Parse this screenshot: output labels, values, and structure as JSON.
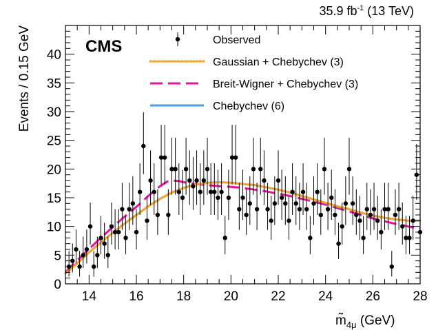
{
  "header": {
    "lumi_value": "35.9 fb",
    "lumi_exponent": "-1",
    "energy": " (13 TeV)"
  },
  "chart_data": {
    "type": "scatter",
    "experiment_label": "CMS",
    "xlabel_main": "m̃",
    "xlabel_subscript": "4μ",
    "xlabel_unit": " (GeV)",
    "ylabel": "Events / 0.15 GeV",
    "xlim": [
      13,
      28
    ],
    "ylim": [
      0,
      45
    ],
    "xticks": [
      14,
      16,
      18,
      20,
      22,
      24,
      26,
      28
    ],
    "yticks": [
      0,
      5,
      10,
      15,
      20,
      25,
      30,
      35,
      40
    ],
    "legend_position": "top-center",
    "legend": [
      {
        "label": "Observed",
        "style": "marker"
      },
      {
        "label": "Gaussian + Chebychev (3)",
        "style": "dotted",
        "color": "#f5a623"
      },
      {
        "label": "Breit-Wigner + Chebychev (3)",
        "style": "dashed",
        "color": "#e8109a"
      },
      {
        "label": "Chebychev (6)",
        "style": "solid",
        "color": "#4a9fe8"
      }
    ],
    "observed": [
      {
        "x": 13.15,
        "y": 3
      },
      {
        "x": 13.3,
        "y": 4
      },
      {
        "x": 13.45,
        "y": 6
      },
      {
        "x": 13.6,
        "y": 3
      },
      {
        "x": 13.75,
        "y": 5
      },
      {
        "x": 13.9,
        "y": 6
      },
      {
        "x": 14.05,
        "y": 10
      },
      {
        "x": 14.2,
        "y": 3
      },
      {
        "x": 14.35,
        "y": 5
      },
      {
        "x": 14.5,
        "y": 8
      },
      {
        "x": 14.65,
        "y": 7
      },
      {
        "x": 14.8,
        "y": 5
      },
      {
        "x": 14.95,
        "y": 10
      },
      {
        "x": 15.1,
        "y": 9
      },
      {
        "x": 15.25,
        "y": 9
      },
      {
        "x": 15.4,
        "y": 13
      },
      {
        "x": 15.55,
        "y": 8
      },
      {
        "x": 15.7,
        "y": 13
      },
      {
        "x": 15.85,
        "y": 14
      },
      {
        "x": 16.0,
        "y": 9
      },
      {
        "x": 16.15,
        "y": 16
      },
      {
        "x": 16.3,
        "y": 24
      },
      {
        "x": 16.45,
        "y": 11
      },
      {
        "x": 16.6,
        "y": 18
      },
      {
        "x": 16.75,
        "y": 16
      },
      {
        "x": 16.9,
        "y": 12
      },
      {
        "x": 17.05,
        "y": 22
      },
      {
        "x": 17.2,
        "y": 22
      },
      {
        "x": 17.35,
        "y": 12
      },
      {
        "x": 17.5,
        "y": 20
      },
      {
        "x": 17.65,
        "y": 20
      },
      {
        "x": 17.8,
        "y": 16
      },
      {
        "x": 17.95,
        "y": 15
      },
      {
        "x": 18.1,
        "y": 20
      },
      {
        "x": 18.25,
        "y": 18
      },
      {
        "x": 18.4,
        "y": 17
      },
      {
        "x": 18.55,
        "y": 18
      },
      {
        "x": 18.7,
        "y": 16
      },
      {
        "x": 18.85,
        "y": 18
      },
      {
        "x": 19.0,
        "y": 20
      },
      {
        "x": 19.15,
        "y": 16
      },
      {
        "x": 19.3,
        "y": 16
      },
      {
        "x": 19.45,
        "y": 15
      },
      {
        "x": 19.6,
        "y": 16
      },
      {
        "x": 19.75,
        "y": 8
      },
      {
        "x": 19.9,
        "y": 15
      },
      {
        "x": 20.05,
        "y": 22
      },
      {
        "x": 20.2,
        "y": 22
      },
      {
        "x": 20.35,
        "y": 13
      },
      {
        "x": 20.5,
        "y": 15
      },
      {
        "x": 20.65,
        "y": 12
      },
      {
        "x": 20.8,
        "y": 14
      },
      {
        "x": 20.95,
        "y": 20
      },
      {
        "x": 21.1,
        "y": 13
      },
      {
        "x": 21.25,
        "y": 20
      },
      {
        "x": 21.4,
        "y": 18
      },
      {
        "x": 21.55,
        "y": 13
      },
      {
        "x": 21.7,
        "y": 11
      },
      {
        "x": 21.85,
        "y": 14
      },
      {
        "x": 22.0,
        "y": 18
      },
      {
        "x": 22.15,
        "y": 15
      },
      {
        "x": 22.3,
        "y": 14
      },
      {
        "x": 22.45,
        "y": 11
      },
      {
        "x": 22.6,
        "y": 16
      },
      {
        "x": 22.75,
        "y": 14
      },
      {
        "x": 22.9,
        "y": 13
      },
      {
        "x": 23.05,
        "y": 16
      },
      {
        "x": 23.2,
        "y": 13
      },
      {
        "x": 23.35,
        "y": 8
      },
      {
        "x": 23.5,
        "y": 14
      },
      {
        "x": 23.65,
        "y": 16
      },
      {
        "x": 23.8,
        "y": 12
      },
      {
        "x": 23.95,
        "y": 20
      },
      {
        "x": 24.1,
        "y": 13
      },
      {
        "x": 24.25,
        "y": 15
      },
      {
        "x": 24.4,
        "y": 12
      },
      {
        "x": 24.55,
        "y": 7
      },
      {
        "x": 24.7,
        "y": 10
      },
      {
        "x": 24.85,
        "y": 14
      },
      {
        "x": 25.0,
        "y": 20
      },
      {
        "x": 25.15,
        "y": 14
      },
      {
        "x": 25.3,
        "y": 12
      },
      {
        "x": 25.45,
        "y": 11
      },
      {
        "x": 25.6,
        "y": 8
      },
      {
        "x": 25.75,
        "y": 13
      },
      {
        "x": 25.9,
        "y": 12
      },
      {
        "x": 26.05,
        "y": 13
      },
      {
        "x": 26.2,
        "y": 11
      },
      {
        "x": 26.35,
        "y": 9
      },
      {
        "x": 26.5,
        "y": 13
      },
      {
        "x": 26.65,
        "y": 13
      },
      {
        "x": 26.8,
        "y": 3
      },
      {
        "x": 26.95,
        "y": 12
      },
      {
        "x": 27.1,
        "y": 13
      },
      {
        "x": 27.25,
        "y": 10
      },
      {
        "x": 27.4,
        "y": 8
      },
      {
        "x": 27.55,
        "y": 8
      },
      {
        "x": 27.7,
        "y": 11
      },
      {
        "x": 27.85,
        "y": 19
      },
      {
        "x": 28.0,
        "y": 9
      }
    ],
    "series": [
      {
        "name": "Gaussian + Chebychev (3)",
        "color": "#f5a623",
        "style": "dotted",
        "x": [
          13.0,
          13.5,
          14.0,
          14.5,
          15.0,
          15.5,
          16.0,
          16.5,
          17.0,
          17.5,
          18.0,
          18.5,
          19.0,
          19.5,
          20.0,
          20.5,
          21.0,
          21.5,
          22.0,
          22.5,
          23.0,
          23.5,
          24.0,
          24.5,
          25.0,
          25.5,
          26.0,
          26.5,
          27.0,
          27.5,
          28.0
        ],
        "y": [
          1.8,
          3.6,
          5.5,
          7.2,
          8.9,
          10.5,
          12.0,
          13.5,
          14.8,
          15.9,
          16.7,
          17.3,
          17.6,
          17.7,
          17.6,
          17.4,
          17.2,
          16.8,
          16.4,
          15.9,
          15.3,
          14.7,
          14.1,
          13.5,
          13.0,
          12.4,
          11.9,
          11.5,
          11.2,
          11.0,
          11.0
        ]
      },
      {
        "name": "Breit-Wigner + Chebychev (3)",
        "color": "#e8109a",
        "style": "dashed",
        "x": [
          13.0,
          13.5,
          14.0,
          14.5,
          15.0,
          15.5,
          16.0,
          16.5,
          17.0,
          17.3,
          17.5,
          17.8,
          18.0,
          18.5,
          19.0,
          19.5,
          20.0,
          20.5,
          21.0,
          21.5,
          22.0,
          22.5,
          23.0,
          23.5,
          24.0,
          24.5,
          25.0,
          25.5,
          26.0,
          26.5,
          27.0,
          27.5,
          28.0
        ],
        "y": [
          2.0,
          4.1,
          6.1,
          8.0,
          9.9,
          11.7,
          13.4,
          15.3,
          17.0,
          17.8,
          18.0,
          17.9,
          17.7,
          17.4,
          17.2,
          17.0,
          16.9,
          16.7,
          16.4,
          16.1,
          15.7,
          15.3,
          14.8,
          14.3,
          13.8,
          13.2,
          12.6,
          12.0,
          11.4,
          10.9,
          10.4,
          10.0,
          9.6
        ]
      },
      {
        "name": "Chebychev (6)",
        "color": "#4a9fe8",
        "style": "solid",
        "x": [
          13.0,
          13.5,
          14.0,
          14.5,
          15.0,
          15.5,
          16.0,
          16.5,
          17.0,
          17.5,
          18.0,
          18.5,
          19.0,
          19.5,
          20.0,
          20.5,
          21.0,
          21.5,
          22.0,
          22.5,
          23.0,
          23.5,
          24.0,
          24.5,
          25.0,
          25.5,
          26.0,
          26.5,
          27.0,
          27.5,
          28.0
        ],
        "y": [
          1.8,
          3.6,
          5.5,
          7.2,
          8.9,
          10.5,
          12.0,
          13.5,
          14.8,
          15.9,
          16.7,
          17.3,
          17.6,
          17.7,
          17.6,
          17.4,
          17.2,
          16.8,
          16.4,
          15.9,
          15.3,
          14.7,
          14.1,
          13.5,
          13.0,
          12.4,
          11.9,
          11.5,
          11.2,
          11.0,
          11.0
        ]
      }
    ]
  }
}
